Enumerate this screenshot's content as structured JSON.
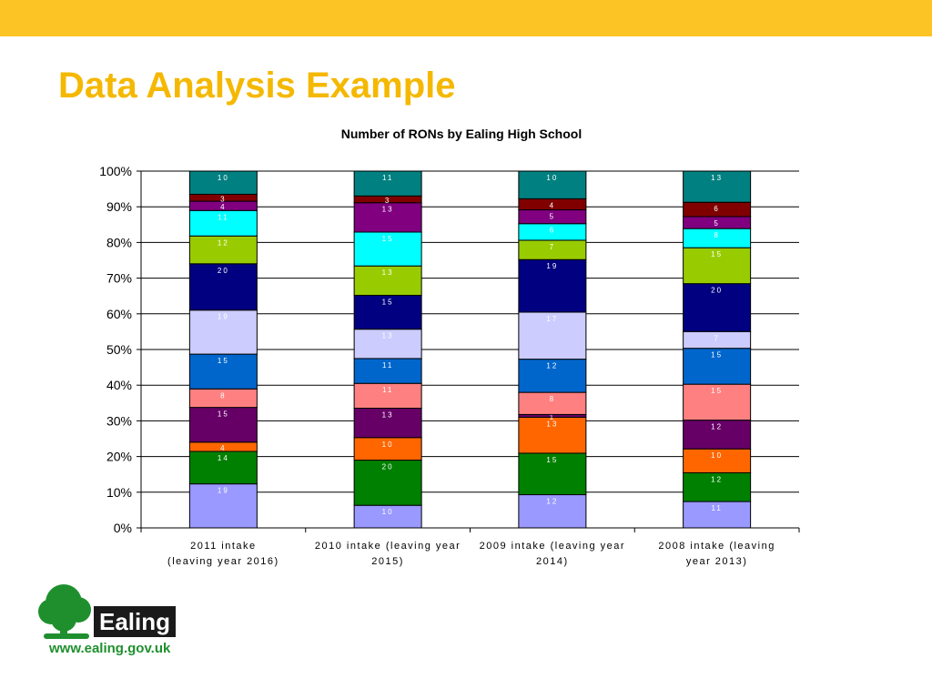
{
  "slide": {
    "title": "Data Analysis Example",
    "accent_color": "#fdc426",
    "title_color": "#f5b800"
  },
  "logo": {
    "word": "Ealing",
    "url": "www.ealing.gov.uk",
    "tree_color": "#1f8f2e"
  },
  "chart_data": {
    "type": "bar",
    "stacked": "percent",
    "title": "Number of RONs by Ealing High School",
    "xlabel": "",
    "ylabel": "",
    "ylim": [
      0,
      100
    ],
    "y_ticks": [
      "0%",
      "10%",
      "20%",
      "30%",
      "40%",
      "50%",
      "60%",
      "70%",
      "80%",
      "90%",
      "100%"
    ],
    "grid": true,
    "legend": "none",
    "categories": [
      [
        "2011 intake",
        "(leaving year 2016)"
      ],
      [
        "2010 intake (leaving year",
        "2015)"
      ],
      [
        "2009  intake (leaving year",
        "2014)"
      ],
      [
        "2008   intake (leaving",
        "year 2013)"
      ]
    ],
    "series": [
      {
        "color": "#9999ff",
        "values": [
          19,
          10,
          12,
          11
        ]
      },
      {
        "color": "#008000",
        "values": [
          14,
          20,
          15,
          12
        ]
      },
      {
        "color": "#ff6600",
        "values": [
          4,
          10,
          13,
          10
        ]
      },
      {
        "color": "#660066",
        "values": [
          15,
          13,
          1,
          12
        ]
      },
      {
        "color": "#ff8080",
        "values": [
          8,
          11,
          8,
          15
        ]
      },
      {
        "color": "#0066cc",
        "values": [
          15,
          11,
          12,
          15
        ]
      },
      {
        "color": "#ccccff",
        "values": [
          19,
          13,
          17,
          7
        ]
      },
      {
        "color": "#000080",
        "values": [
          20,
          15,
          19,
          20
        ]
      },
      {
        "color": "#99cc00",
        "values": [
          12,
          13,
          7,
          15
        ]
      },
      {
        "color": "#00ffff",
        "values": [
          11,
          15,
          6,
          8
        ]
      },
      {
        "color": "#800080",
        "values": [
          4,
          13,
          5,
          5
        ]
      },
      {
        "color": "#800000",
        "values": [
          3,
          3,
          4,
          6
        ]
      },
      {
        "color": "#008080",
        "values": [
          10,
          11,
          10,
          13
        ]
      }
    ]
  }
}
